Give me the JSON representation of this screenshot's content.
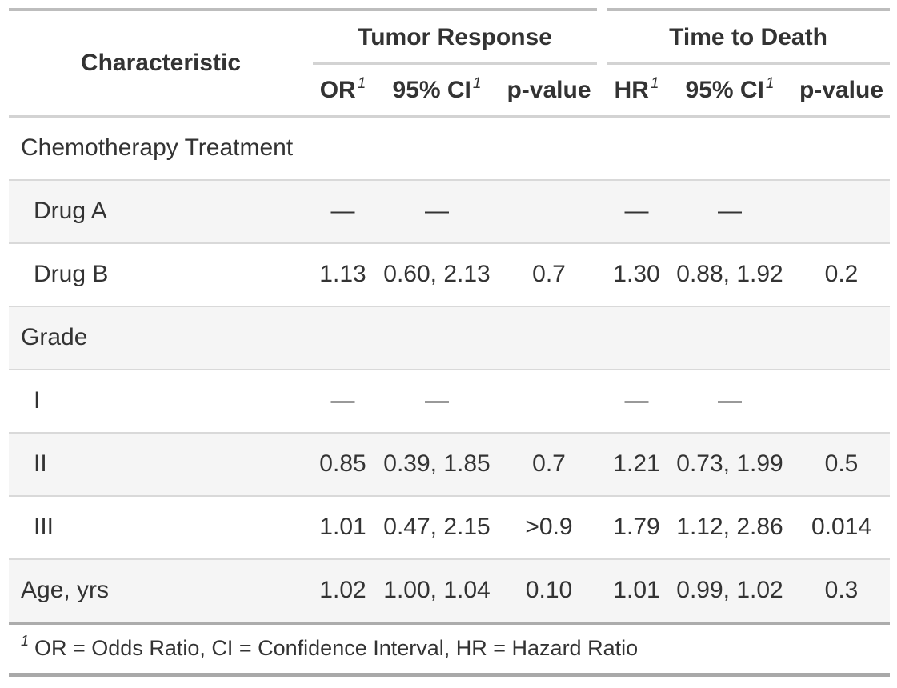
{
  "table": {
    "header": {
      "characteristic": "Characteristic",
      "spanner_tumor": "Tumor Response",
      "spanner_death": "Time to Death",
      "tumor_cols": {
        "or": "OR",
        "ci": "95% CI",
        "p": "p-value"
      },
      "death_cols": {
        "hr": "HR",
        "ci": "95% CI",
        "p": "p-value"
      },
      "footnote_marker": "1"
    },
    "rows": [
      {
        "label": "Chemotherapy Treatment",
        "or": "",
        "or_ci": "",
        "or_p": "",
        "hr": "",
        "hr_ci": "",
        "hr_p": ""
      },
      {
        "label": "Drug A",
        "or": "—",
        "or_ci": "—",
        "or_p": "",
        "hr": "—",
        "hr_ci": "—",
        "hr_p": ""
      },
      {
        "label": "Drug B",
        "or": "1.13",
        "or_ci": "0.60, 2.13",
        "or_p": "0.7",
        "hr": "1.30",
        "hr_ci": "0.88, 1.92",
        "hr_p": "0.2"
      },
      {
        "label": "Grade",
        "or": "",
        "or_ci": "",
        "or_p": "",
        "hr": "",
        "hr_ci": "",
        "hr_p": ""
      },
      {
        "label": "I",
        "or": "—",
        "or_ci": "—",
        "or_p": "",
        "hr": "—",
        "hr_ci": "—",
        "hr_p": ""
      },
      {
        "label": "II",
        "or": "0.85",
        "or_ci": "0.39, 1.85",
        "or_p": "0.7",
        "hr": "1.21",
        "hr_ci": "0.73, 1.99",
        "hr_p": "0.5"
      },
      {
        "label": "III",
        "or": "1.01",
        "or_ci": "0.47, 2.15",
        "or_p": ">0.9",
        "hr": "1.79",
        "hr_ci": "1.12, 2.86",
        "hr_p": "0.014"
      },
      {
        "label": "Age, yrs",
        "or": "1.02",
        "or_ci": "1.00, 1.04",
        "or_p": "0.10",
        "hr": "1.01",
        "hr_ci": "0.99, 1.02",
        "hr_p": "0.3"
      }
    ],
    "footnote": {
      "marker": "1",
      "text": "OR = Odds Ratio, CI = Confidence Interval, HR = Hazard Ratio"
    }
  },
  "colors": {
    "text": "#333333",
    "stripe": "#f5f5f5",
    "header_underline": "#d3d3d3",
    "row_divider": "#d9d9d9",
    "top_border": "#bdbdbd",
    "bottom_border": "#a9a9a9"
  }
}
